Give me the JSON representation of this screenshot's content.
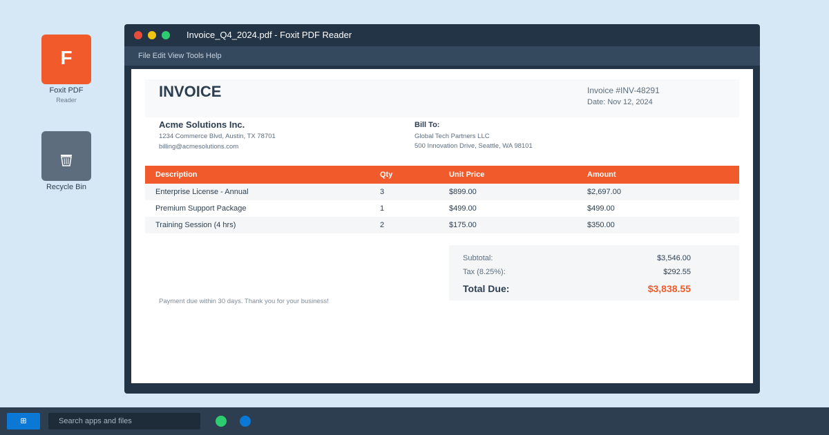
{
  "desktop": {
    "icons": [
      {
        "glyph": "F",
        "label": "Foxit PDF",
        "sublabel": "Reader"
      },
      {
        "label": "Recycle Bin"
      }
    ]
  },
  "window": {
    "title": "Invoice_Q4_2024.pdf - Foxit PDF Reader",
    "menu": [
      "File",
      "Edit",
      "View",
      "Tools",
      "Help"
    ]
  },
  "invoice": {
    "heading": "INVOICE",
    "number": "Invoice #INV-48291",
    "date": "Date: Nov 12, 2024",
    "from": {
      "name": "Acme Solutions Inc.",
      "address": "1234 Commerce Blvd, Austin, TX 78701",
      "email": "billing@acmesolutions.com"
    },
    "bill_to": {
      "label": "Bill To:",
      "name": "Global Tech Partners LLC",
      "address": "500 Innovation Drive, Seattle, WA 98101"
    },
    "table": {
      "columns": [
        "Description",
        "Qty",
        "Unit Price",
        "Amount"
      ],
      "rows": [
        [
          "Enterprise License - Annual",
          "3",
          "$899.00",
          "$2,697.00"
        ],
        [
          "Premium Support Package",
          "1",
          "$499.00",
          "$499.00"
        ],
        [
          "Training Session (4 hrs)",
          "2",
          "$175.00",
          "$350.00"
        ]
      ]
    },
    "totals": {
      "subtotal_label": "Subtotal:",
      "subtotal": "$3,546.00",
      "tax_label": "Tax (8.25%):",
      "tax": "$292.55",
      "total_label": "Total Due:",
      "total": "$3,838.55"
    },
    "note": "Payment due within 30 days. Thank you for your business!"
  },
  "taskbar": {
    "start": "⊞",
    "search": "Search apps and files"
  }
}
